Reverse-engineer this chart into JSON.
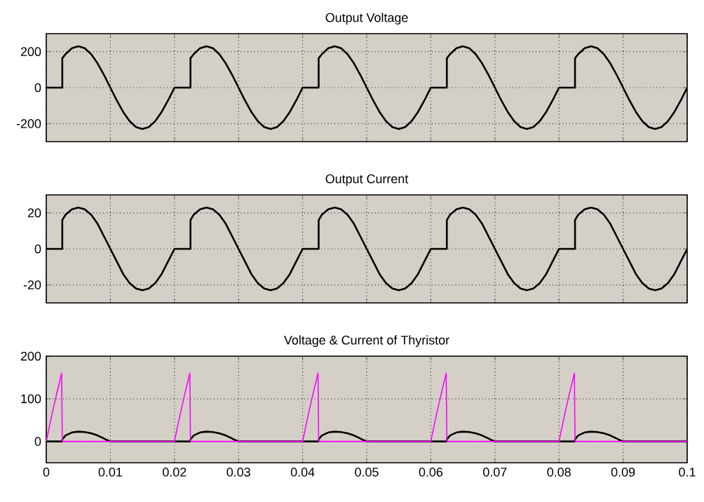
{
  "chart_data": [
    {
      "type": "line",
      "title": "Output Voltage",
      "xlim": [
        0,
        0.1
      ],
      "xticks": [
        0,
        0.01,
        0.02,
        0.03,
        0.04,
        0.05,
        0.06,
        0.07,
        0.08,
        0.09,
        0.1
      ],
      "ylim": [
        -300,
        300
      ],
      "yticks": [
        -200,
        0,
        200
      ],
      "grid": true,
      "tick_labels": "y",
      "series": [
        {
          "color": "#000000",
          "x": [
            0,
            0.0025,
            0.0025,
            0.003,
            0.004,
            0.005,
            0.006,
            0.007,
            0.008,
            0.009,
            0.01,
            0.011,
            0.012,
            0.013,
            0.014,
            0.015,
            0.016,
            0.017,
            0.018,
            0.019,
            0.02,
            0.0225,
            0.0225,
            0.023,
            0.024,
            0.025,
            0.026,
            0.027,
            0.028,
            0.029,
            0.03,
            0.031,
            0.032,
            0.033,
            0.034,
            0.035,
            0.036,
            0.037,
            0.038,
            0.039,
            0.04,
            0.0425,
            0.0425,
            0.043,
            0.044,
            0.045,
            0.046,
            0.047,
            0.048,
            0.049,
            0.05,
            0.051,
            0.052,
            0.053,
            0.054,
            0.055,
            0.056,
            0.057,
            0.058,
            0.059,
            0.06,
            0.0625,
            0.0625,
            0.063,
            0.064,
            0.065,
            0.066,
            0.067,
            0.068,
            0.069,
            0.07,
            0.071,
            0.072,
            0.073,
            0.074,
            0.075,
            0.076,
            0.077,
            0.078,
            0.079,
            0.08,
            0.0825,
            0.0825,
            0.083,
            0.084,
            0.085,
            0.086,
            0.087,
            0.088,
            0.089,
            0.09,
            0.091,
            0.092,
            0.093,
            0.094,
            0.095,
            0.096,
            0.097,
            0.098,
            0.099,
            0.1
          ],
          "values": [
            0,
            0,
            163,
            186,
            219,
            230,
            219,
            186,
            135,
            71,
            0,
            -71,
            -135,
            -186,
            -219,
            -230,
            -219,
            -186,
            -135,
            -71,
            0,
            0,
            163,
            186,
            219,
            230,
            219,
            186,
            135,
            71,
            0,
            -71,
            -135,
            -186,
            -219,
            -230,
            -219,
            -186,
            -135,
            -71,
            0,
            0,
            163,
            186,
            219,
            230,
            219,
            186,
            135,
            71,
            0,
            -71,
            -135,
            -186,
            -219,
            -230,
            -219,
            -186,
            -135,
            -71,
            0,
            0,
            163,
            186,
            219,
            230,
            219,
            186,
            135,
            71,
            0,
            -71,
            -135,
            -186,
            -219,
            -230,
            -219,
            -186,
            -135,
            -71,
            0,
            0,
            163,
            186,
            219,
            230,
            219,
            186,
            135,
            71,
            0,
            -71,
            -135,
            -186,
            -219,
            -230,
            -219,
            -186,
            -135,
            -71,
            0
          ]
        }
      ]
    },
    {
      "type": "line",
      "title": "Output Current",
      "xlim": [
        0,
        0.1
      ],
      "xticks": [
        0,
        0.01,
        0.02,
        0.03,
        0.04,
        0.05,
        0.06,
        0.07,
        0.08,
        0.09,
        0.1
      ],
      "ylim": [
        -30,
        30
      ],
      "yticks": [
        -20,
        0,
        20
      ],
      "grid": true,
      "tick_labels": "y",
      "series": [
        {
          "color": "#000000",
          "x": [
            0,
            0.0025,
            0.0025,
            0.003,
            0.004,
            0.005,
            0.006,
            0.007,
            0.008,
            0.009,
            0.01,
            0.011,
            0.012,
            0.013,
            0.014,
            0.015,
            0.016,
            0.017,
            0.018,
            0.019,
            0.02,
            0.0225,
            0.0225,
            0.023,
            0.024,
            0.025,
            0.026,
            0.027,
            0.028,
            0.029,
            0.03,
            0.031,
            0.032,
            0.033,
            0.034,
            0.035,
            0.036,
            0.037,
            0.038,
            0.039,
            0.04,
            0.0425,
            0.0425,
            0.043,
            0.044,
            0.045,
            0.046,
            0.047,
            0.048,
            0.049,
            0.05,
            0.051,
            0.052,
            0.053,
            0.054,
            0.055,
            0.056,
            0.057,
            0.058,
            0.059,
            0.06,
            0.0625,
            0.0625,
            0.063,
            0.064,
            0.065,
            0.066,
            0.067,
            0.068,
            0.069,
            0.07,
            0.071,
            0.072,
            0.073,
            0.074,
            0.075,
            0.076,
            0.077,
            0.078,
            0.079,
            0.08,
            0.0825,
            0.0825,
            0.083,
            0.084,
            0.085,
            0.086,
            0.087,
            0.088,
            0.089,
            0.09,
            0.091,
            0.092,
            0.093,
            0.094,
            0.095,
            0.096,
            0.097,
            0.098,
            0.099,
            0.1
          ],
          "values": [
            0,
            0,
            16,
            19,
            22,
            23,
            22,
            19,
            14,
            7,
            0,
            -7,
            -14,
            -19,
            -22,
            -23,
            -22,
            -19,
            -14,
            -7,
            0,
            0,
            16,
            19,
            22,
            23,
            22,
            19,
            14,
            7,
            0,
            -7,
            -14,
            -19,
            -22,
            -23,
            -22,
            -19,
            -14,
            -7,
            0,
            0,
            16,
            19,
            22,
            23,
            22,
            19,
            14,
            7,
            0,
            -7,
            -14,
            -19,
            -22,
            -23,
            -22,
            -19,
            -14,
            -7,
            0,
            0,
            16,
            19,
            22,
            23,
            22,
            19,
            14,
            7,
            0,
            -7,
            -14,
            -19,
            -22,
            -23,
            -22,
            -19,
            -14,
            -7,
            0,
            0,
            16,
            19,
            22,
            23,
            22,
            19,
            14,
            7,
            0,
            -7,
            -14,
            -19,
            -22,
            -23,
            -22,
            -19,
            -14,
            -7,
            0
          ]
        }
      ]
    },
    {
      "type": "line",
      "title": "Voltage & Current of Thyristor",
      "xlim": [
        0,
        0.1
      ],
      "xticks": [
        0,
        0.01,
        0.02,
        0.03,
        0.04,
        0.05,
        0.06,
        0.07,
        0.08,
        0.09,
        0.1
      ],
      "ylim": [
        -50,
        200
      ],
      "yticks": [
        0,
        100,
        200
      ],
      "grid": true,
      "series": [
        {
          "color": "#000000",
          "x": [
            0,
            0.0025,
            0.0025,
            0.003,
            0.004,
            0.005,
            0.006,
            0.007,
            0.008,
            0.009,
            0.0095,
            0.01,
            0.02,
            0.0225,
            0.0225,
            0.023,
            0.024,
            0.025,
            0.026,
            0.027,
            0.028,
            0.029,
            0.0295,
            0.03,
            0.04,
            0.0425,
            0.0425,
            0.043,
            0.044,
            0.045,
            0.046,
            0.047,
            0.048,
            0.049,
            0.0495,
            0.05,
            0.06,
            0.0625,
            0.0625,
            0.063,
            0.064,
            0.065,
            0.066,
            0.067,
            0.068,
            0.069,
            0.0695,
            0.07,
            0.08,
            0.0825,
            0.0825,
            0.083,
            0.084,
            0.085,
            0.086,
            0.087,
            0.088,
            0.089,
            0.0895,
            0.09,
            0.1
          ],
          "values": [
            0,
            0,
            5,
            14,
            21,
            23,
            22,
            19,
            14,
            7,
            3,
            0,
            0,
            0,
            5,
            14,
            21,
            23,
            22,
            19,
            14,
            7,
            3,
            0,
            0,
            0,
            5,
            14,
            21,
            23,
            22,
            19,
            14,
            7,
            3,
            0,
            0,
            0,
            5,
            14,
            21,
            23,
            22,
            19,
            14,
            7,
            3,
            0,
            0,
            0,
            5,
            14,
            21,
            23,
            22,
            19,
            14,
            7,
            3,
            0,
            0
          ]
        },
        {
          "color": "#ff00ff",
          "x": [
            0,
            0.0005,
            0.001,
            0.0015,
            0.002,
            0.0024,
            0.0025,
            0.02,
            0.0205,
            0.021,
            0.0215,
            0.022,
            0.0224,
            0.0225,
            0.04,
            0.0405,
            0.041,
            0.0415,
            0.042,
            0.0424,
            0.0425,
            0.06,
            0.0605,
            0.061,
            0.0615,
            0.062,
            0.0624,
            0.0625,
            0.08,
            0.0805,
            0.081,
            0.0815,
            0.082,
            0.0824,
            0.0825,
            0.1
          ],
          "values": [
            0,
            36,
            71,
            104,
            135,
            160,
            0,
            0,
            36,
            71,
            104,
            135,
            160,
            0,
            0,
            36,
            71,
            104,
            135,
            160,
            0,
            0,
            36,
            71,
            104,
            135,
            160,
            0,
            0,
            36,
            71,
            104,
            135,
            160,
            0,
            0
          ]
        }
      ]
    }
  ]
}
